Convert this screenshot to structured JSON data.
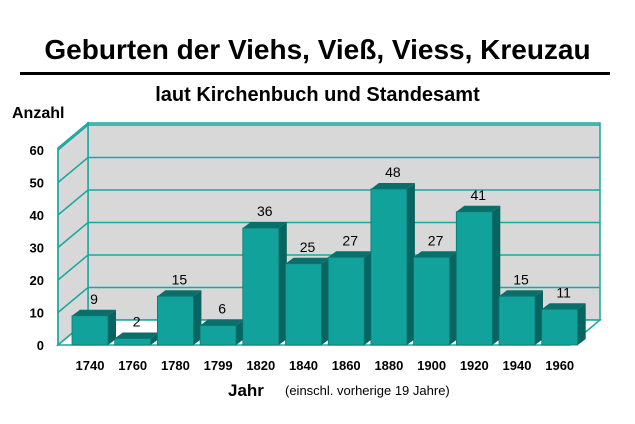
{
  "chart_data": {
    "type": "bar",
    "title": "Geburten der Viehs, Vieß, Viess, Kreuzau",
    "subtitle": "laut Kirchenbuch und Standesamt",
    "ylabel": "Anzahl",
    "xlabel": "Jahr",
    "xlabel_note": "(einschl. vorherige 19 Jahre)",
    "categories": [
      "1740",
      "1760",
      "1780",
      "1799",
      "1820",
      "1840",
      "1860",
      "1880",
      "1900",
      "1920",
      "1940",
      "1960"
    ],
    "values": [
      9,
      2,
      15,
      6,
      36,
      25,
      27,
      48,
      27,
      41,
      15,
      11
    ],
    "yticks": [
      0,
      10,
      20,
      30,
      40,
      50,
      60
    ],
    "ylim": [
      0,
      60
    ],
    "grid": true,
    "style": "3d",
    "colors": {
      "bar_front": "#11a39b",
      "bar_top": "#0a6f6a",
      "bar_side": "#076460",
      "gridline": "#19a79f",
      "wall": "#d8d8d8",
      "floor": "#ffffff"
    }
  }
}
